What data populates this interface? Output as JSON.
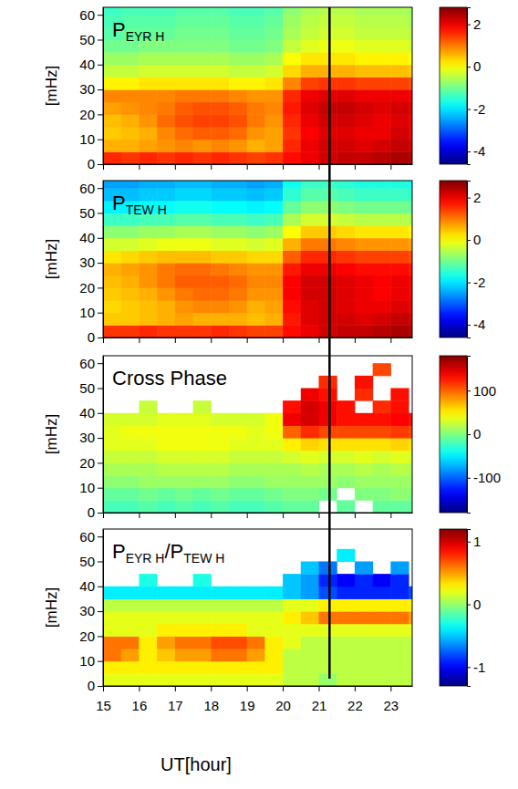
{
  "chart_data": [
    {
      "type": "heatmap",
      "title": "PEYR H",
      "ylabel": "[mHz]",
      "xlim": [
        15,
        23.6
      ],
      "xticks": [
        15,
        16,
        17,
        18,
        19,
        20,
        21,
        22,
        23
      ],
      "ylim": [
        0,
        63
      ],
      "yticks": [
        0,
        10,
        20,
        30,
        40,
        50,
        60
      ],
      "tick_labels": "y",
      "x_edges": [
        15,
        15.5,
        16,
        16.5,
        17,
        17.5,
        18,
        18.5,
        19,
        19.5,
        20,
        20.5,
        21,
        21.5,
        22,
        22.5,
        23,
        23.5,
        24
      ],
      "y_edges": [
        0,
        5,
        10,
        15,
        20,
        25,
        30,
        35,
        40,
        45,
        50,
        55,
        60,
        65
      ],
      "cells": [
        [
          1.6,
          1.5,
          1.6,
          1.5,
          1.6,
          1.5,
          1.6,
          1.5,
          1.4,
          1.5,
          1.8,
          2.0,
          2.2,
          2.3,
          2.3,
          2.4,
          2.5,
          2.4
        ],
        [
          0.6,
          0.6,
          0.7,
          0.8,
          0.9,
          0.8,
          0.9,
          0.8,
          0.6,
          0.7,
          1.6,
          2.0,
          2.2,
          2.2,
          2.1,
          2.2,
          2.3,
          2.2
        ],
        [
          0.4,
          0.5,
          0.6,
          0.9,
          1.1,
          1.2,
          1.2,
          1.1,
          0.8,
          0.7,
          1.5,
          1.9,
          2.1,
          2.1,
          2.0,
          2.0,
          2.2,
          2.0
        ],
        [
          0.5,
          0.6,
          0.8,
          1.1,
          1.3,
          1.4,
          1.4,
          1.3,
          1.0,
          0.8,
          1.6,
          2.0,
          2.2,
          2.2,
          2.1,
          2.0,
          2.1,
          2.0
        ],
        [
          0.7,
          0.8,
          0.9,
          1.0,
          1.2,
          1.3,
          1.3,
          1.2,
          1.0,
          0.9,
          1.7,
          2.1,
          2.3,
          2.3,
          2.2,
          2.1,
          2.2,
          2.1
        ],
        [
          0.9,
          0.9,
          0.9,
          0.9,
          1.0,
          1.0,
          1.0,
          0.9,
          0.8,
          0.8,
          1.6,
          2.0,
          2.1,
          2.1,
          2.0,
          2.0,
          2.0,
          1.9
        ],
        [
          0.1,
          0.1,
          0.2,
          0.2,
          0.2,
          0.2,
          0.2,
          0.1,
          0.1,
          0.2,
          0.9,
          1.4,
          1.5,
          1.5,
          1.4,
          1.4,
          1.4,
          1.3
        ],
        [
          -0.4,
          -0.4,
          -0.3,
          -0.3,
          -0.3,
          -0.3,
          -0.3,
          -0.4,
          -0.4,
          -0.3,
          0.3,
          0.6,
          0.6,
          0.6,
          0.5,
          0.5,
          0.5,
          0.4
        ],
        [
          -0.7,
          -0.7,
          -0.6,
          -0.6,
          -0.6,
          -0.6,
          -0.6,
          -0.7,
          -0.7,
          -0.6,
          0.0,
          0.2,
          0.2,
          0.2,
          0.1,
          0.1,
          0.1,
          0.0
        ],
        [
          -1.0,
          -1.0,
          -0.9,
          -0.9,
          -0.9,
          -0.9,
          -0.9,
          -1.0,
          -1.0,
          -0.9,
          -0.4,
          -0.2,
          -0.1,
          -0.1,
          -0.2,
          -0.2,
          -0.2,
          -0.3
        ],
        [
          -1.2,
          -1.1,
          -1.1,
          -1.1,
          -1.0,
          -1.0,
          -1.0,
          -1.1,
          -1.1,
          -1.0,
          -0.6,
          -0.4,
          -0.3,
          -0.3,
          -0.4,
          -0.4,
          -0.4,
          -0.5
        ],
        [
          -1.3,
          -1.2,
          -1.2,
          -1.2,
          -1.1,
          -1.1,
          -1.1,
          -1.2,
          -1.2,
          -1.1,
          -0.7,
          -0.5,
          -0.4,
          -0.4,
          -0.5,
          -0.5,
          -0.5,
          -0.6
        ],
        [
          -1.4,
          -1.3,
          -1.3,
          -1.3,
          -1.2,
          -1.2,
          -1.2,
          -1.3,
          -1.3,
          -1.2,
          -0.8,
          -0.6,
          -0.5,
          -0.5,
          -0.6,
          -0.6,
          -0.6,
          -0.7
        ]
      ],
      "colorbar": {
        "range": [
          -4.6,
          2.8
        ],
        "ticks": [
          -4,
          -2,
          0,
          2
        ]
      },
      "vline": 21.3
    },
    {
      "type": "heatmap",
      "title": "PTEW H",
      "ylabel": "[mHz]",
      "xlim": [
        15,
        23.6
      ],
      "xticks": [
        15,
        16,
        17,
        18,
        19,
        20,
        21,
        22,
        23
      ],
      "ylim": [
        0,
        63
      ],
      "yticks": [
        0,
        10,
        20,
        30,
        40,
        50,
        60
      ],
      "tick_labels": "y",
      "x_edges": [
        15,
        15.5,
        16,
        16.5,
        17,
        17.5,
        18,
        18.5,
        19,
        19.5,
        20,
        20.5,
        21,
        21.5,
        22,
        22.5,
        23,
        23.5,
        24
      ],
      "y_edges": [
        0,
        5,
        10,
        15,
        20,
        25,
        30,
        35,
        40,
        45,
        50,
        55,
        60,
        65
      ],
      "cells": [
        [
          1.5,
          1.5,
          1.6,
          1.5,
          1.5,
          1.5,
          1.6,
          1.5,
          1.4,
          1.4,
          1.8,
          2.0,
          2.2,
          2.3,
          2.3,
          2.4,
          2.5,
          2.4
        ],
        [
          0.4,
          0.4,
          0.5,
          0.6,
          0.7,
          0.6,
          0.6,
          0.6,
          0.5,
          0.6,
          1.7,
          2.1,
          2.2,
          2.2,
          2.1,
          2.2,
          2.3,
          2.2
        ],
        [
          0.3,
          0.4,
          0.5,
          0.6,
          0.8,
          0.9,
          0.9,
          0.8,
          0.6,
          0.7,
          1.8,
          2.1,
          2.2,
          2.1,
          2.0,
          2.0,
          2.1,
          2.0
        ],
        [
          0.4,
          0.5,
          0.6,
          0.8,
          1.0,
          1.1,
          1.1,
          1.0,
          0.8,
          0.8,
          1.9,
          2.2,
          2.2,
          2.1,
          2.0,
          1.9,
          2.0,
          1.9
        ],
        [
          0.5,
          0.6,
          0.8,
          1.0,
          1.2,
          1.2,
          1.2,
          1.1,
          0.9,
          0.9,
          1.9,
          2.2,
          2.2,
          2.1,
          2.0,
          1.9,
          2.0,
          1.9
        ],
        [
          0.6,
          0.7,
          0.8,
          1.0,
          1.1,
          1.1,
          1.0,
          0.9,
          0.8,
          0.8,
          1.7,
          2.0,
          2.0,
          1.9,
          1.8,
          1.8,
          1.8,
          1.7
        ],
        [
          0.2,
          0.3,
          0.4,
          0.5,
          0.5,
          0.5,
          0.4,
          0.4,
          0.3,
          0.3,
          1.2,
          1.6,
          1.6,
          1.5,
          1.4,
          1.4,
          1.4,
          1.3
        ],
        [
          -0.3,
          -0.3,
          -0.2,
          -0.1,
          -0.1,
          -0.1,
          -0.2,
          -0.2,
          -0.3,
          -0.2,
          0.6,
          1.0,
          1.0,
          0.9,
          0.8,
          0.8,
          0.8,
          0.7
        ],
        [
          -0.8,
          -0.8,
          -0.7,
          -0.7,
          -0.6,
          -0.6,
          -0.7,
          -0.7,
          -0.8,
          -0.7,
          0.0,
          0.4,
          0.4,
          0.3,
          0.2,
          0.2,
          0.2,
          0.1
        ],
        [
          -1.4,
          -1.4,
          -1.3,
          -1.3,
          -1.2,
          -1.2,
          -1.3,
          -1.3,
          -1.4,
          -1.3,
          -0.6,
          -0.3,
          -0.3,
          -0.4,
          -0.5,
          -0.5,
          -0.5,
          -0.6
        ],
        [
          -1.9,
          -1.9,
          -1.8,
          -1.8,
          -1.7,
          -1.7,
          -1.8,
          -1.8,
          -1.9,
          -1.8,
          -1.1,
          -0.8,
          -0.8,
          -0.9,
          -1.0,
          -1.0,
          -1.0,
          -1.1
        ],
        [
          -2.3,
          -2.3,
          -2.2,
          -2.2,
          -2.1,
          -2.1,
          -2.2,
          -2.2,
          -2.3,
          -2.2,
          -1.5,
          -1.2,
          -1.2,
          -1.3,
          -1.4,
          -1.4,
          -1.4,
          -1.5
        ],
        [
          -2.5,
          -2.5,
          -2.4,
          -2.4,
          -2.3,
          -2.3,
          -2.4,
          -2.4,
          -2.5,
          -2.4,
          -1.7,
          -1.4,
          -1.4,
          -1.5,
          -1.6,
          -1.6,
          -1.6,
          -1.7
        ]
      ],
      "colorbar": {
        "range": [
          -4.6,
          2.8
        ],
        "ticks": [
          -4,
          -2,
          0,
          2
        ]
      },
      "vline": 21.3
    },
    {
      "type": "heatmap",
      "title": "Cross Phase",
      "ylabel": "[mHz]",
      "xlim": [
        15,
        23.6
      ],
      "xticks": [
        15,
        16,
        17,
        18,
        19,
        20,
        21,
        22,
        23
      ],
      "ylim": [
        0,
        63
      ],
      "yticks": [
        0,
        10,
        20,
        30,
        40,
        50,
        60
      ],
      "tick_labels": "y",
      "x_edges": [
        15,
        15.5,
        16,
        16.5,
        17,
        17.5,
        18,
        18.5,
        19,
        19.5,
        20,
        20.5,
        21,
        21.5,
        22,
        22.5,
        23,
        23.5,
        24
      ],
      "y_edges": [
        0,
        5,
        10,
        15,
        20,
        25,
        30,
        35,
        40,
        45,
        50,
        55,
        60,
        65
      ],
      "cells": [
        [
          -20,
          -20,
          -15,
          -20,
          -15,
          -20,
          -15,
          -20,
          -20,
          -15,
          -10,
          -10,
          null,
          -10,
          null,
          -10,
          -10,
          -10
        ],
        [
          -10,
          -10,
          -5,
          -10,
          -5,
          -10,
          -5,
          -10,
          -10,
          -5,
          0,
          0,
          -5,
          null,
          0,
          0,
          5,
          0
        ],
        [
          5,
          5,
          10,
          10,
          10,
          10,
          10,
          5,
          5,
          10,
          10,
          10,
          10,
          5,
          10,
          10,
          10,
          10
        ],
        [
          15,
          15,
          15,
          20,
          20,
          20,
          20,
          15,
          15,
          15,
          15,
          20,
          15,
          15,
          20,
          15,
          20,
          15
        ],
        [
          25,
          25,
          25,
          30,
          30,
          30,
          30,
          25,
          25,
          25,
          30,
          35,
          30,
          30,
          35,
          30,
          35,
          30
        ],
        [
          35,
          35,
          35,
          40,
          40,
          40,
          40,
          35,
          35,
          35,
          50,
          60,
          55,
          55,
          55,
          55,
          60,
          55
        ],
        [
          35,
          40,
          40,
          40,
          40,
          40,
          40,
          40,
          35,
          40,
          100,
          120,
          110,
          110,
          110,
          110,
          115,
          110
        ],
        [
          30,
          30,
          30,
          35,
          35,
          35,
          30,
          30,
          30,
          40,
          140,
          150,
          140,
          130,
          130,
          130,
          135,
          130
        ],
        [
          null,
          null,
          25,
          null,
          null,
          25,
          null,
          null,
          null,
          null,
          130,
          150,
          140,
          130,
          null,
          120,
          130,
          null
        ],
        [
          null,
          null,
          null,
          null,
          null,
          null,
          null,
          null,
          null,
          null,
          null,
          140,
          130,
          null,
          120,
          null,
          130,
          null
        ],
        [
          null,
          null,
          null,
          null,
          null,
          null,
          null,
          null,
          null,
          null,
          null,
          null,
          120,
          null,
          130,
          null,
          null,
          null
        ],
        [
          null,
          null,
          null,
          null,
          null,
          null,
          null,
          null,
          null,
          null,
          null,
          null,
          null,
          null,
          null,
          110,
          null,
          null
        ],
        [
          null,
          null,
          null,
          null,
          null,
          null,
          null,
          null,
          null,
          null,
          null,
          null,
          null,
          null,
          null,
          null,
          null,
          null
        ]
      ],
      "colorbar": {
        "range": [
          -180,
          180
        ],
        "ticks": [
          -100,
          0,
          100
        ]
      },
      "vline": 21.3
    },
    {
      "type": "heatmap",
      "title": "PEYR H/PTEW H",
      "ylabel": "[mHz]",
      "xlabel": "UT[hour]",
      "xlim": [
        15,
        23.6
      ],
      "xticks": [
        15,
        16,
        17,
        18,
        19,
        20,
        21,
        22,
        23
      ],
      "ylim": [
        0,
        63
      ],
      "yticks": [
        0,
        10,
        20,
        30,
        40,
        50,
        60
      ],
      "tick_labels": true,
      "x_edges": [
        15,
        15.5,
        16,
        16.5,
        17,
        17.5,
        18,
        18.5,
        19,
        19.5,
        20,
        20.5,
        21,
        21.5,
        22,
        22.5,
        23,
        23.5,
        24
      ],
      "y_edges": [
        0,
        5,
        10,
        15,
        20,
        25,
        30,
        35,
        40,
        45,
        50,
        55,
        60,
        65
      ],
      "cells": [
        [
          0.2,
          0.2,
          0.2,
          0.2,
          0.2,
          0.2,
          0.2,
          0.2,
          0.2,
          0.2,
          0.1,
          0.1,
          0.0,
          0.1,
          0.1,
          0.1,
          0.1,
          0.1
        ],
        [
          0.3,
          0.3,
          0.3,
          0.3,
          0.3,
          0.3,
          0.3,
          0.3,
          0.3,
          0.3,
          0.1,
          0.1,
          0.1,
          0.1,
          0.1,
          0.1,
          0.1,
          0.1
        ],
        [
          0.6,
          0.5,
          0.3,
          0.4,
          0.5,
          0.5,
          0.6,
          0.6,
          0.5,
          0.3,
          0.1,
          0.1,
          0.1,
          0.1,
          0.1,
          0.1,
          0.1,
          0.1
        ],
        [
          0.6,
          0.6,
          0.3,
          0.5,
          0.6,
          0.6,
          0.7,
          0.7,
          0.6,
          0.3,
          0.2,
          0.1,
          0.1,
          0.1,
          0.1,
          0.1,
          0.1,
          0.1
        ],
        [
          0.2,
          0.2,
          0.2,
          0.3,
          0.3,
          0.3,
          0.3,
          0.3,
          0.2,
          0.2,
          0.2,
          0.2,
          0.2,
          0.2,
          0.2,
          0.2,
          0.2,
          0.2
        ],
        [
          0.2,
          0.2,
          0.2,
          0.2,
          0.2,
          0.2,
          0.2,
          0.2,
          0.2,
          0.2,
          0.3,
          0.4,
          0.6,
          0.6,
          0.6,
          0.6,
          0.6,
          0.5
        ],
        [
          0.1,
          0.1,
          0.1,
          0.1,
          0.1,
          0.1,
          0.1,
          0.1,
          0.1,
          0.1,
          0.2,
          0.2,
          0.3,
          0.3,
          0.3,
          0.3,
          0.3,
          0.3
        ],
        [
          -0.4,
          -0.4,
          -0.4,
          -0.4,
          -0.4,
          -0.4,
          -0.4,
          -0.4,
          -0.4,
          -0.4,
          -0.5,
          -0.6,
          -0.8,
          -0.9,
          -0.9,
          -0.9,
          -0.9,
          -0.8
        ],
        [
          null,
          null,
          -0.3,
          null,
          null,
          -0.3,
          null,
          null,
          null,
          null,
          -0.5,
          -0.6,
          -0.9,
          -1.0,
          -0.9,
          -1.0,
          -0.9,
          null
        ],
        [
          null,
          null,
          null,
          null,
          null,
          null,
          null,
          null,
          null,
          null,
          null,
          -0.5,
          -0.7,
          null,
          -0.6,
          null,
          -0.6,
          null
        ],
        [
          null,
          null,
          null,
          null,
          null,
          null,
          null,
          null,
          null,
          null,
          null,
          null,
          null,
          -0.4,
          null,
          null,
          null,
          null
        ],
        [
          null,
          null,
          null,
          null,
          null,
          null,
          null,
          null,
          null,
          null,
          null,
          null,
          null,
          null,
          null,
          null,
          null,
          null
        ],
        [
          null,
          null,
          null,
          null,
          null,
          null,
          null,
          null,
          null,
          null,
          null,
          null,
          null,
          null,
          null,
          null,
          null,
          null
        ]
      ],
      "colorbar": {
        "range": [
          -1.3,
          1.2
        ],
        "ticks": [
          -1,
          0,
          1
        ]
      },
      "vline": 21.3
    }
  ]
}
